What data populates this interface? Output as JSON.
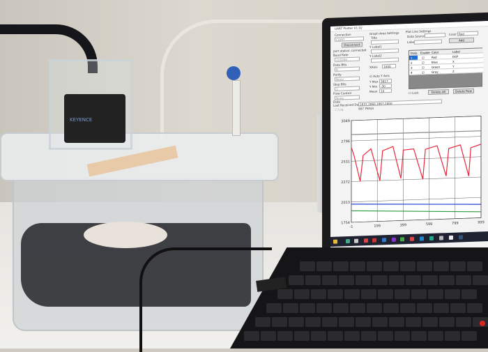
{
  "scene": {
    "sensor_brand": "KEYENCE",
    "colors": {
      "wall": "#d2cec5",
      "table": "#efeee9",
      "laptop": "#1a1a1c",
      "tube": "#e8e6df",
      "valve": "#3260b8"
    }
  },
  "app": {
    "title": "UART Plotter V1.02",
    "connection": {
      "heading": "Connection",
      "port": "COM7",
      "disconnect_label": "Disconnect",
      "status": "port status: connected",
      "baud_rate_label": "Baud Rate",
      "baud_rate": "115200",
      "data_bits_label": "Data Bits",
      "data_bits": "8",
      "parity_label": "Parity",
      "parity": "None",
      "stop_bits_label": "Stop Bits",
      "stop_bits": "1",
      "flow_control_label": "Flow Control",
      "flow_control": "None"
    },
    "graph_area": {
      "heading": "Graph Area Settings",
      "title_label": "Title",
      "ylabel1_label": "Y Label1",
      "ylabel2_label": "Y Label2",
      "xaxis_label": "XAxis",
      "xaxis": "1000",
      "auto_y_label": "Auto Y Axis",
      "ymax_label": "Y Max",
      "ymax": "3817",
      "ymin_label": "Y Min",
      "ymin": "-30",
      "mean_label": "Mean",
      "mean": "10"
    },
    "plot_line": {
      "heading": "Plot Line Settings",
      "data_source_label": "Data Source",
      "color_label": "Color",
      "color_value": "Red",
      "label_label": "Label",
      "add_label": "Add",
      "columns": [
        "Data",
        "Enable",
        "Color",
        "Label"
      ],
      "rows": [
        {
          "data": "1",
          "color": "Red",
          "label": "DSP"
        },
        {
          "data": "2",
          "color": "Blue",
          "label": "X"
        },
        {
          "data": "3",
          "color": "Green",
          "label": "Y"
        },
        {
          "data": "4",
          "color": "Gray",
          "label": "Z"
        }
      ],
      "lock_label": "Lock",
      "delete_all_label": "Delete All",
      "delete_row_label": "Delete Row"
    },
    "data_section": {
      "heading": "Data",
      "last_received_label": "Last Received Data",
      "last_received": "2837,1860,1867,2000",
      "log_label": "Log",
      "rate": "997",
      "rate_unit": "Pkts/s"
    }
  },
  "chart_data": {
    "type": "line",
    "xlim": [
      -1,
      999
    ],
    "ylim": [
      1754,
      3049
    ],
    "xticks": [
      "-1",
      "199",
      "399",
      "599",
      "799",
      "999"
    ],
    "yticks": [
      "3049",
      "2796",
      "2531",
      "2272",
      "2013",
      "1754"
    ],
    "grid": true,
    "series": [
      {
        "color": "#888888",
        "x": [
          0,
          999
        ],
        "y": [
          2870,
          2860
        ]
      },
      {
        "color": "#e8283a",
        "x": [
          0,
          20,
          67,
          90,
          150,
          219,
          240,
          320,
          381,
          400,
          480,
          550,
          570,
          660,
          730,
          750,
          840,
          904,
          920,
          999
        ],
        "y": [
          2700,
          2600,
          2272,
          2600,
          2680,
          2272,
          2650,
          2700,
          2290,
          2650,
          2660,
          2272,
          2650,
          2690,
          2300,
          2650,
          2690,
          2290,
          2650,
          2690
        ]
      },
      {
        "color": "#2040d0",
        "x": [
          0,
          999
        ],
        "y": [
          1985,
          1925
        ]
      },
      {
        "color": "#2a9a3a",
        "x": [
          0,
          999
        ],
        "y": [
          1900,
          1830
        ]
      }
    ]
  }
}
